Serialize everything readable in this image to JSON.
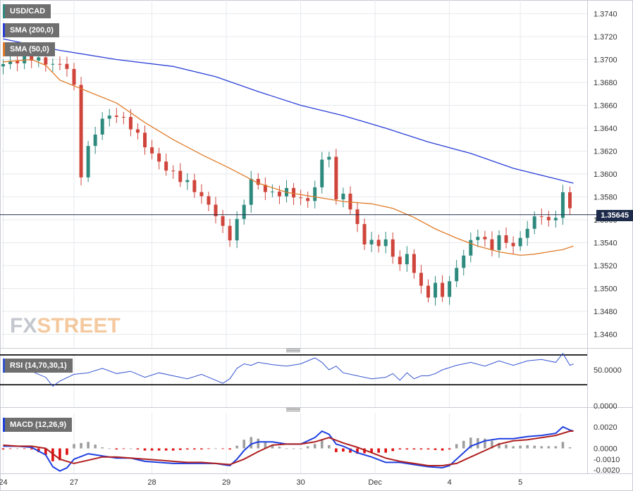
{
  "legend": {
    "symbol": "USD/CAD",
    "sma200_label": "SMA (200,0)",
    "sma50_label": "SMA (50,0)",
    "rsi_label": "RSI (14,70,30,1)",
    "macd_label": "MACD (12,26,9)"
  },
  "colors": {
    "up": "#2f8a7e",
    "down": "#d0453b",
    "sma200": "#2a3fd8",
    "sma50": "#e07b28",
    "rsi": "#3454d1",
    "macd": "#1e3fe0",
    "signal": "#b02020",
    "hist_pos": "#9e9e9e",
    "hist_neg": "#e01010",
    "grid": "#e6e9ee",
    "price_line": "#1d2a4a"
  },
  "watermark": {
    "fx": "FX",
    "street": "STREET"
  },
  "current_price_label": "1.35645",
  "chart_data": [
    {
      "type": "candlestick",
      "title": "USD/CAD",
      "x_labels": [
        "24",
        "27",
        "28",
        "29",
        "30",
        "Dec",
        "4",
        "5"
      ],
      "y_ticks": [
        "1.3460",
        "1.3480",
        "1.3500",
        "1.3520",
        "1.3540",
        "1.3560",
        "1.3580",
        "1.3600",
        "1.3620",
        "1.3640",
        "1.3660",
        "1.3680",
        "1.3700",
        "1.3720",
        "1.3740"
      ],
      "ylim": [
        1.3448,
        1.3752
      ],
      "current_price": 1.35645,
      "close_path": [
        [
          0,
          1.3696
        ],
        [
          4,
          1.3702
        ],
        [
          6,
          1.3697
        ],
        [
          9,
          1.3694
        ],
        [
          10,
          1.3675
        ],
        [
          11,
          1.36
        ],
        [
          12,
          1.3622
        ],
        [
          13,
          1.3636
        ],
        [
          14,
          1.3648
        ],
        [
          16,
          1.3652
        ],
        [
          18,
          1.3642
        ],
        [
          20,
          1.3625
        ],
        [
          22,
          1.361
        ],
        [
          24,
          1.36
        ],
        [
          26,
          1.3592
        ],
        [
          28,
          1.358
        ],
        [
          30,
          1.3565
        ],
        [
          31,
          1.3552
        ],
        [
          32,
          1.3545
        ],
        [
          33,
          1.3558
        ],
        [
          34,
          1.3575
        ],
        [
          35,
          1.3595
        ],
        [
          36,
          1.359
        ],
        [
          38,
          1.3582
        ],
        [
          40,
          1.3585
        ],
        [
          42,
          1.3578
        ],
        [
          43,
          1.3576
        ],
        [
          44,
          1.359
        ],
        [
          45,
          1.361
        ],
        [
          46,
          1.3618
        ],
        [
          47,
          1.3575
        ],
        [
          48,
          1.3585
        ],
        [
          49,
          1.3568
        ],
        [
          50,
          1.3556
        ],
        [
          51,
          1.354
        ],
        [
          53,
          1.354
        ],
        [
          54,
          1.354
        ],
        [
          55,
          1.353
        ],
        [
          56,
          1.352
        ],
        [
          57,
          1.353
        ],
        [
          58,
          1.3515
        ],
        [
          59,
          1.35
        ],
        [
          60,
          1.3495
        ],
        [
          61,
          1.3502
        ],
        [
          62,
          1.3495
        ],
        [
          63,
          1.3505
        ],
        [
          64,
          1.3518
        ],
        [
          65,
          1.353
        ],
        [
          66,
          1.354
        ],
        [
          67,
          1.3548
        ],
        [
          68,
          1.354
        ],
        [
          69,
          1.3536
        ],
        [
          70,
          1.3545
        ],
        [
          71,
          1.354
        ],
        [
          72,
          1.3538
        ],
        [
          73,
          1.3542
        ],
        [
          74,
          1.3555
        ],
        [
          75,
          1.356
        ],
        [
          76,
          1.3565
        ],
        [
          77,
          1.3558
        ],
        [
          78,
          1.3562
        ],
        [
          79,
          1.3585
        ],
        [
          80,
          1.3568
        ],
        [
          80.5,
          1.35645
        ]
      ],
      "sma200": [
        [
          0,
          1.3718
        ],
        [
          8,
          1.3708
        ],
        [
          16,
          1.37
        ],
        [
          24,
          1.3694
        ],
        [
          30,
          1.3685
        ],
        [
          36,
          1.3672
        ],
        [
          42,
          1.366
        ],
        [
          48,
          1.3651
        ],
        [
          54,
          1.364
        ],
        [
          60,
          1.3628
        ],
        [
          66,
          1.3618
        ],
        [
          72,
          1.3605
        ],
        [
          80.5,
          1.3592
        ]
      ],
      "sma50": [
        [
          0,
          1.3698
        ],
        [
          4,
          1.37
        ],
        [
          6,
          1.3695
        ],
        [
          8,
          1.3682
        ],
        [
          12,
          1.3672
        ],
        [
          16,
          1.3662
        ],
        [
          20,
          1.3645
        ],
        [
          24,
          1.363
        ],
        [
          28,
          1.3617
        ],
        [
          32,
          1.3605
        ],
        [
          36,
          1.3592
        ],
        [
          40,
          1.3584
        ],
        [
          44,
          1.358
        ],
        [
          48,
          1.3576
        ],
        [
          52,
          1.3574
        ],
        [
          55,
          1.357
        ],
        [
          58,
          1.3562
        ],
        [
          61,
          1.3552
        ],
        [
          64,
          1.3544
        ],
        [
          67,
          1.3537
        ],
        [
          70,
          1.3532
        ],
        [
          73,
          1.3529
        ],
        [
          75,
          1.353
        ],
        [
          77,
          1.3532
        ],
        [
          79,
          1.3534
        ],
        [
          80.5,
          1.3537
        ]
      ]
    },
    {
      "type": "line",
      "title": "RSI (14,70,30,1)",
      "y_ticks": [
        "0.0000",
        "50.0000"
      ],
      "ylim": [
        0,
        100
      ],
      "levels": [
        70,
        30
      ],
      "series": [
        {
          "values": [
            [
              0,
              52
            ],
            [
              2,
              57
            ],
            [
              4,
              48
            ],
            [
              6,
              40
            ],
            [
              7,
              28
            ],
            [
              8,
              35
            ],
            [
              10,
              44
            ],
            [
              12,
              46
            ],
            [
              14,
              52
            ],
            [
              16,
              45
            ],
            [
              18,
              48
            ],
            [
              20,
              40
            ],
            [
              22,
              46
            ],
            [
              24,
              42
            ],
            [
              26,
              38
            ],
            [
              28,
              44
            ],
            [
              30,
              36
            ],
            [
              31,
              32
            ],
            [
              32,
              38
            ],
            [
              33,
              52
            ],
            [
              34,
              58
            ],
            [
              35,
              56
            ],
            [
              36,
              60
            ],
            [
              38,
              57
            ],
            [
              40,
              55
            ],
            [
              42,
              58
            ],
            [
              44,
              66
            ],
            [
              45,
              60
            ],
            [
              46,
              50
            ],
            [
              47,
              55
            ],
            [
              48,
              46
            ],
            [
              50,
              42
            ],
            [
              52,
              38
            ],
            [
              54,
              40
            ],
            [
              55,
              45
            ],
            [
              56,
              36
            ],
            [
              57,
              46
            ],
            [
              58,
              38
            ],
            [
              59,
              42
            ],
            [
              60,
              42
            ],
            [
              61,
              45
            ],
            [
              62,
              50
            ],
            [
              64,
              56
            ],
            [
              66,
              60
            ],
            [
              68,
              55
            ],
            [
              70,
              62
            ],
            [
              72,
              56
            ],
            [
              74,
              62
            ],
            [
              76,
              64
            ],
            [
              78,
              60
            ],
            [
              79,
              72
            ],
            [
              80,
              56
            ],
            [
              80.5,
              58
            ]
          ]
        }
      ]
    },
    {
      "type": "line+bar",
      "title": "MACD (12,26,9)",
      "y_ticks": [
        "0.0020",
        "0.0000",
        "-0.0010",
        "-0.0020"
      ],
      "ylim": [
        -0.00232,
        0.0033
      ],
      "series": [
        {
          "values": [
            [
              0,
              0.0002
            ],
            [
              2,
              0.0002
            ],
            [
              4,
              0.0001
            ],
            [
              6,
              -0.0006
            ],
            [
              7,
              -0.0017
            ],
            [
              8,
              -0.0021
            ],
            [
              9,
              -0.0018
            ],
            [
              10,
              -0.001
            ],
            [
              12,
              -0.0005
            ],
            [
              14,
              -0.0007
            ],
            [
              16,
              -0.0009
            ],
            [
              18,
              -0.0009
            ],
            [
              20,
              -0.0012
            ],
            [
              22,
              -0.0013
            ],
            [
              24,
              -0.0014
            ],
            [
              26,
              -0.0014
            ],
            [
              28,
              -0.0014
            ],
            [
              30,
              -0.0014
            ],
            [
              31,
              -0.0015
            ],
            [
              32,
              -0.0016
            ],
            [
              33,
              -0.001
            ],
            [
              34,
              -0.0002
            ],
            [
              35,
              0.0004
            ],
            [
              36,
              0.0006
            ],
            [
              38,
              0.0006
            ],
            [
              40,
              0.0004
            ],
            [
              42,
              0.0004
            ],
            [
              44,
              0.001
            ],
            [
              45,
              0.0016
            ],
            [
              46,
              0.0013
            ],
            [
              47,
              0.0004
            ],
            [
              48,
              0.0002
            ],
            [
              50,
              -0.0004
            ],
            [
              52,
              -0.0008
            ],
            [
              54,
              -0.0013
            ],
            [
              56,
              -0.0013
            ],
            [
              58,
              -0.0015
            ],
            [
              60,
              -0.0017
            ],
            [
              62,
              -0.0018
            ],
            [
              63,
              -0.0016
            ],
            [
              64,
              -0.001
            ],
            [
              65,
              -0.0004
            ],
            [
              66,
              0.0002
            ],
            [
              68,
              0.0007
            ],
            [
              70,
              0.0009
            ],
            [
              72,
              0.0009
            ],
            [
              74,
              0.0011
            ],
            [
              76,
              0.0012
            ],
            [
              78,
              0.0014
            ],
            [
              79,
              0.002
            ],
            [
              80,
              0.0017
            ],
            [
              80.5,
              0.0016
            ]
          ]
        },
        {
          "values": [
            [
              0,
              0.0003
            ],
            [
              2,
              0.0002
            ],
            [
              4,
              0.0002
            ],
            [
              6,
              0.0
            ],
            [
              8,
              -0.001
            ],
            [
              10,
              -0.0014
            ],
            [
              12,
              -0.0011
            ],
            [
              14,
              -0.0008
            ],
            [
              16,
              -0.0008
            ],
            [
              18,
              -0.0009
            ],
            [
              20,
              -0.001
            ],
            [
              22,
              -0.0011
            ],
            [
              24,
              -0.0012
            ],
            [
              26,
              -0.0013
            ],
            [
              28,
              -0.0013
            ],
            [
              30,
              -0.0014
            ],
            [
              32,
              -0.0015
            ],
            [
              34,
              -0.001
            ],
            [
              36,
              -0.0003
            ],
            [
              38,
              0.0003
            ],
            [
              40,
              0.0004
            ],
            [
              42,
              0.0004
            ],
            [
              44,
              0.0006
            ],
            [
              46,
              0.001
            ],
            [
              48,
              0.0005
            ],
            [
              50,
              0.0001
            ],
            [
              52,
              -0.0004
            ],
            [
              54,
              -0.0009
            ],
            [
              56,
              -0.0012
            ],
            [
              58,
              -0.0014
            ],
            [
              60,
              -0.0016
            ],
            [
              62,
              -0.0016
            ],
            [
              64,
              -0.0014
            ],
            [
              66,
              -0.0008
            ],
            [
              68,
              -0.0002
            ],
            [
              70,
              0.0004
            ],
            [
              72,
              0.0007
            ],
            [
              74,
              0.0008
            ],
            [
              76,
              0.001
            ],
            [
              78,
              0.0012
            ],
            [
              80,
              0.0016
            ],
            [
              80.5,
              0.0016
            ]
          ]
        }
      ]
    }
  ]
}
